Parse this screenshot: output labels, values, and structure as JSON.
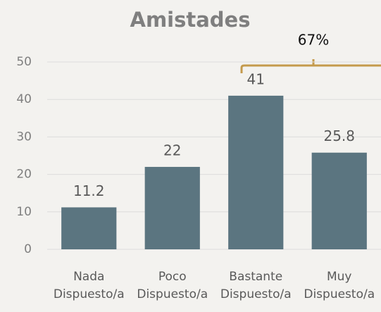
{
  "chart_data": {
    "type": "bar",
    "title": "Amistades",
    "categories": [
      "Nada Dispuesto/a",
      "Poco Dispuesto/a",
      "Bastante Dispuesto/a",
      "Muy Dispuesto/a"
    ],
    "values": [
      11.2,
      22,
      41,
      25.8
    ],
    "color": "#5b7580",
    "ylim": [
      0,
      50
    ],
    "yticks": [
      0,
      10,
      20,
      30,
      40,
      50
    ],
    "grid": true,
    "annotations": [
      "67%"
    ]
  }
}
